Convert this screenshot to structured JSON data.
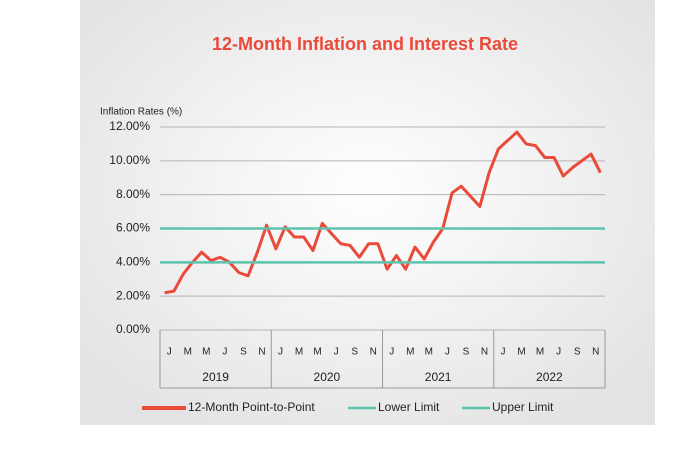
{
  "chart_data": {
    "type": "line",
    "title": "12-Month Inflation and Interest Rate",
    "ylabel": "Inflation Rates (%)",
    "ylim": [
      0,
      12
    ],
    "yticks": [
      {
        "value": 0,
        "label": "0.00%"
      },
      {
        "value": 2,
        "label": "2.00%"
      },
      {
        "value": 4,
        "label": "4.00%"
      },
      {
        "value": 6,
        "label": "6.00%"
      },
      {
        "value": 8,
        "label": "8.00%"
      },
      {
        "value": 10,
        "label": "10.00%"
      },
      {
        "value": 12,
        "label": "12.00%"
      }
    ],
    "grid": true,
    "categories": [
      "J",
      null,
      "M",
      null,
      "M",
      null,
      "J",
      null,
      "S",
      null,
      "N",
      null,
      "J",
      null,
      "M",
      null,
      "M",
      null,
      "J",
      null,
      "S",
      null,
      "N",
      null,
      "J",
      null,
      "M",
      null,
      "M",
      null,
      "J",
      null,
      "S",
      null,
      "N",
      null,
      "J",
      null,
      "M",
      null,
      "M",
      null,
      "J",
      null,
      "S",
      null,
      "N",
      null
    ],
    "years": [
      "2019",
      "2020",
      "2021",
      "2022"
    ],
    "series": [
      {
        "name": "12-Month Point-to-Point",
        "color": "#ea4a3a",
        "values": [
          2.2,
          2.3,
          3.3,
          4.0,
          4.6,
          4.1,
          4.3,
          4.0,
          3.4,
          3.2,
          4.6,
          6.2,
          4.8,
          6.1,
          5.5,
          5.5,
          4.7,
          6.3,
          5.7,
          5.1,
          5.0,
          4.3,
          5.1,
          5.1,
          3.6,
          4.4,
          3.6,
          4.9,
          4.2,
          5.2,
          6.0,
          8.1,
          8.5,
          7.9,
          7.3,
          9.3,
          10.7,
          11.2,
          11.7,
          11.0,
          10.9,
          10.2,
          10.2,
          9.1,
          9.6,
          10.0,
          10.4,
          9.3
        ]
      },
      {
        "name": "Lower Limit",
        "color": "#5cc4ac",
        "value": 4
      },
      {
        "name": "Upper Limit",
        "color": "#5cc4ac",
        "value": 6
      }
    ],
    "legend": "bottom"
  }
}
